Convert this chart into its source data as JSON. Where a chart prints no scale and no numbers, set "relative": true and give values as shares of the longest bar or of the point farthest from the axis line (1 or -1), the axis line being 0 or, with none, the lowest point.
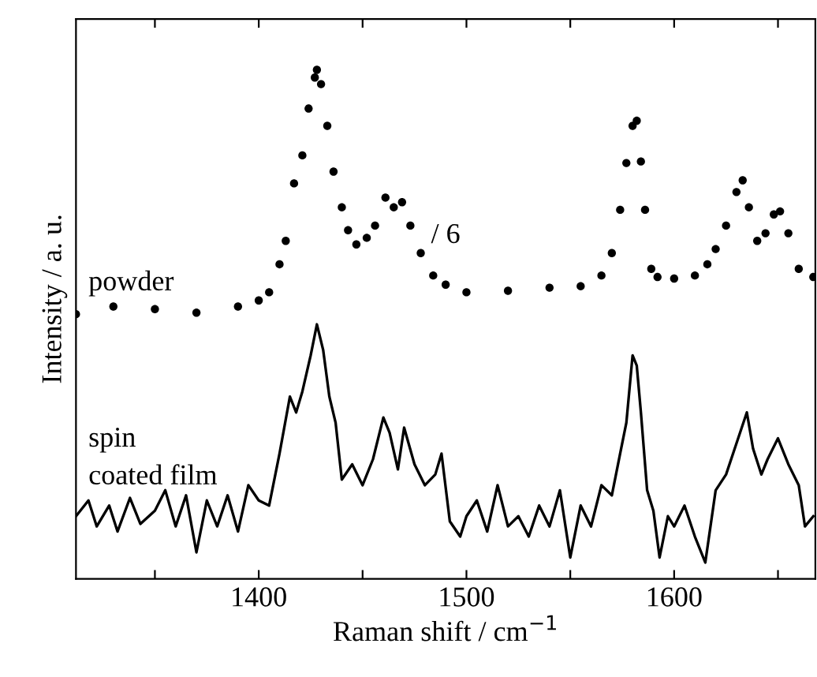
{
  "chart_data": {
    "type": "scatter",
    "relative": true,
    "xlabel": "Raman shift / cm$^{−1}$",
    "ylabel": "Intensity / a. u.",
    "xlim": [
      1312,
      1668
    ],
    "xticks": [
      {
        "value": 1350,
        "label": null
      },
      1400,
      {
        "value": 1450,
        "label": null
      },
      1500,
      {
        "value": 1550,
        "label": null
      },
      1600,
      {
        "value": 1650,
        "label": null
      }
    ],
    "grid": false,
    "legend": false,
    "annotations": [
      "/ 6"
    ],
    "series": [
      {
        "name": "powder",
        "marker": "circle",
        "color": "#000000",
        "x": [
          1312,
          1330,
          1350,
          1370,
          1390,
          1400,
          1405,
          1410,
          1413,
          1417,
          1421,
          1424,
          1427,
          1428,
          1430,
          1433,
          1436,
          1440,
          1443,
          1447,
          1452,
          1456,
          1461,
          1465,
          1469,
          1473,
          1478,
          1484,
          1490,
          1500,
          1520,
          1540,
          1555,
          1565,
          1570,
          1574,
          1577,
          1580,
          1582,
          1584,
          1586,
          1589,
          1592,
          1600,
          1610,
          1616,
          1620,
          1625,
          1630,
          1633,
          1636,
          1640,
          1644,
          1648,
          1651,
          1655,
          1660,
          1667
        ],
        "values": [
          0.52,
          0.535,
          0.53,
          0.523,
          0.535,
          0.547,
          0.563,
          0.618,
          0.664,
          0.777,
          0.832,
          0.924,
          0.985,
          1.0,
          0.972,
          0.89,
          0.8,
          0.73,
          0.685,
          0.657,
          0.67,
          0.694,
          0.749,
          0.73,
          0.74,
          0.694,
          0.64,
          0.596,
          0.578,
          0.563,
          0.566,
          0.572,
          0.575,
          0.596,
          0.64,
          0.725,
          0.817,
          0.89,
          0.9,
          0.82,
          0.725,
          0.609,
          0.593,
          0.59,
          0.596,
          0.618,
          0.648,
          0.694,
          0.76,
          0.783,
          0.73,
          0.664,
          0.679,
          0.716,
          0.722,
          0.679,
          0.609,
          0.593
        ]
      },
      {
        "name": "spin\ncoated film",
        "type": "line",
        "color": "#000000",
        "x": [
          1312,
          1318,
          1322,
          1328,
          1332,
          1338,
          1343,
          1350,
          1355,
          1360,
          1365,
          1370,
          1375,
          1380,
          1385,
          1390,
          1395,
          1400,
          1405,
          1410,
          1415,
          1418,
          1421,
          1425,
          1428,
          1431,
          1434,
          1437,
          1440,
          1445,
          1450,
          1455,
          1460,
          1463,
          1467,
          1470,
          1475,
          1480,
          1485,
          1488,
          1492,
          1497,
          1500,
          1505,
          1510,
          1515,
          1520,
          1525,
          1530,
          1535,
          1540,
          1545,
          1550,
          1555,
          1560,
          1565,
          1570,
          1574,
          1577,
          1580,
          1582,
          1584,
          1587,
          1590,
          1593,
          1597,
          1600,
          1605,
          1610,
          1615,
          1620,
          1625,
          1630,
          1635,
          1638,
          1642,
          1645,
          1650,
          1655,
          1660,
          1663,
          1667
        ],
        "values": [
          0.123,
          0.154,
          0.103,
          0.144,
          0.093,
          0.159,
          0.108,
          0.134,
          0.174,
          0.103,
          0.164,
          0.052,
          0.154,
          0.103,
          0.164,
          0.093,
          0.184,
          0.154,
          0.144,
          0.246,
          0.358,
          0.327,
          0.368,
          0.439,
          0.5,
          0.45,
          0.358,
          0.307,
          0.195,
          0.225,
          0.184,
          0.235,
          0.317,
          0.287,
          0.215,
          0.297,
          0.225,
          0.184,
          0.205,
          0.246,
          0.113,
          0.083,
          0.123,
          0.154,
          0.093,
          0.184,
          0.103,
          0.123,
          0.083,
          0.144,
          0.103,
          0.174,
          0.042,
          0.144,
          0.103,
          0.184,
          0.164,
          0.246,
          0.307,
          0.439,
          0.419,
          0.327,
          0.174,
          0.134,
          0.042,
          0.123,
          0.103,
          0.144,
          0.083,
          0.032,
          0.174,
          0.205,
          0.266,
          0.327,
          0.256,
          0.205,
          0.235,
          0.276,
          0.225,
          0.184,
          0.103,
          0.123
        ]
      }
    ]
  }
}
